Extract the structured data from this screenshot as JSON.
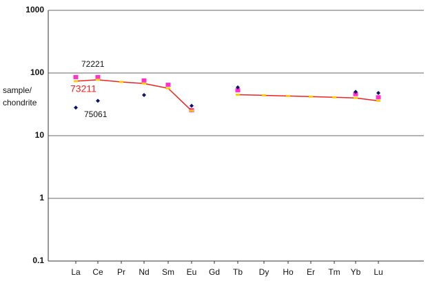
{
  "chart_data": {
    "type": "line",
    "log_y": true,
    "grid": true,
    "y_label": [
      "sample/",
      "chondrite"
    ],
    "categories": [
      "La",
      "Ce",
      "Pr",
      "Nd",
      "Sm",
      "Eu",
      "Gd",
      "Tb",
      "Dy",
      "Ho",
      "Er",
      "Tm",
      "Yb",
      "Lu"
    ],
    "ylim": [
      0.1,
      1000
    ],
    "yticks": [
      0.1,
      1,
      10,
      100,
      1000
    ],
    "series": [
      {
        "name": "72221",
        "color": "#ff33cc",
        "marker": "square",
        "line": false,
        "values": [
          86,
          86,
          null,
          76,
          65,
          25.5,
          null,
          53,
          null,
          null,
          null,
          null,
          46,
          41
        ]
      },
      {
        "name": "73211",
        "color": "#ee2222",
        "marker_color": "#ffcc00",
        "marker": "small-square",
        "line": true,
        "values": [
          74,
          78,
          72,
          68,
          57,
          25,
          null,
          45,
          44,
          43,
          42,
          41,
          40,
          36
        ]
      },
      {
        "name": "75061",
        "color": "#111166",
        "marker": "diamond",
        "line": false,
        "values": [
          28,
          36,
          null,
          44.5,
          null,
          30,
          null,
          59,
          null,
          null,
          null,
          null,
          50,
          48
        ]
      }
    ]
  }
}
